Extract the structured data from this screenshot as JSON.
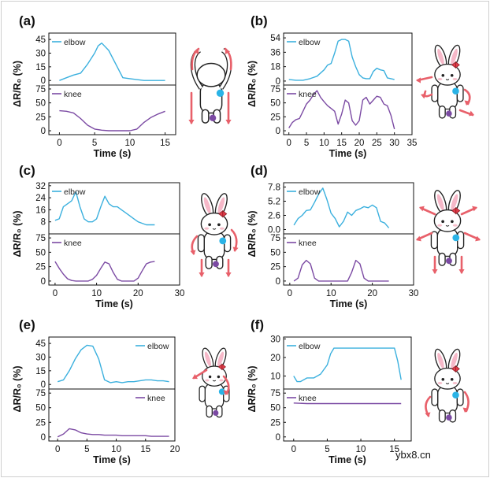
{
  "watermark": "ybx8.cn",
  "colors": {
    "elbow": "#3bb0de",
    "knee": "#7b4aa3",
    "arrow": "#e8606a",
    "blue_dot": "#2ab3e6",
    "purple_dot": "#7b4aa3"
  },
  "chart_data": [
    {
      "panel": "(a)",
      "type": "line",
      "xlabel": "Time (s)",
      "ylabel": "ΔR/R₀ (%)",
      "xlim": [
        -1.5,
        16.5
      ],
      "xticks": [
        0,
        5,
        10,
        15
      ],
      "top": {
        "name": "elbow",
        "legend": "elbow",
        "ylim": [
          -5,
          52
        ],
        "yticks": [
          0,
          15,
          30,
          45
        ],
        "x": [
          0,
          1,
          2,
          3,
          4,
          5,
          5.5,
          6,
          7,
          8,
          9,
          10,
          11,
          12,
          13,
          14,
          15
        ],
        "y": [
          0,
          3,
          6,
          8,
          18,
          30,
          38,
          41,
          33,
          18,
          3,
          2,
          1,
          0,
          0,
          0,
          0
        ]
      },
      "bottom": {
        "name": "knee",
        "legend": "knee",
        "ylim": [
          -7,
          82
        ],
        "yticks": [
          0,
          25,
          50,
          75
        ],
        "x": [
          0,
          1,
          2,
          3,
          4,
          5,
          6,
          7,
          8,
          9,
          10,
          11,
          12,
          13,
          14,
          15
        ],
        "y": [
          36,
          35,
          32,
          22,
          10,
          3,
          1,
          0,
          0,
          0,
          0,
          3,
          15,
          24,
          30,
          35
        ]
      }
    },
    {
      "panel": "(b)",
      "type": "line",
      "xlabel": "Time (s)",
      "ylabel": "ΔR/R₀ (%)",
      "xlim": [
        -1.5,
        35
      ],
      "xticks": [
        0,
        5,
        10,
        15,
        20,
        25,
        30,
        35
      ],
      "top": {
        "name": "elbow",
        "legend": "elbow",
        "ylim": [
          -5,
          60
        ],
        "yticks": [
          0,
          18,
          36,
          54
        ],
        "x": [
          0,
          2,
          4,
          6,
          8,
          10,
          11,
          12,
          13,
          14,
          15,
          16,
          17,
          18,
          19,
          20,
          21,
          22,
          23,
          24,
          25,
          26,
          27,
          28,
          29,
          30
        ],
        "y": [
          2,
          1,
          1,
          3,
          6,
          14,
          20,
          22,
          35,
          50,
          52,
          52,
          50,
          30,
          18,
          8,
          4,
          3,
          3,
          12,
          16,
          14,
          13,
          4,
          3,
          2
        ]
      },
      "bottom": {
        "name": "knee",
        "legend": "knee",
        "ylim": [
          -7,
          82
        ],
        "yticks": [
          0,
          25,
          50,
          75
        ],
        "x": [
          0,
          1,
          2,
          3,
          4,
          5,
          6,
          7,
          8,
          9,
          10,
          11,
          12,
          13,
          14,
          15,
          16,
          17,
          18,
          19,
          20,
          21,
          22,
          23,
          24,
          25,
          26,
          27,
          28,
          29,
          30
        ],
        "y": [
          5,
          15,
          20,
          22,
          35,
          48,
          55,
          65,
          72,
          60,
          52,
          45,
          40,
          35,
          12,
          30,
          55,
          50,
          18,
          10,
          18,
          55,
          60,
          48,
          55,
          62,
          60,
          48,
          45,
          28,
          3
        ]
      }
    },
    {
      "panel": "(c)",
      "type": "line",
      "xlabel": "Time (s)",
      "ylabel": "ΔR/R₀ (%)",
      "xlim": [
        -1.5,
        30
      ],
      "xticks": [
        0,
        10,
        20,
        30
      ],
      "top": {
        "name": "elbow",
        "legend": "elbow",
        "ylim": [
          0,
          34
        ],
        "yticks": [
          8,
          16,
          24,
          32
        ],
        "x": [
          0,
          1,
          2,
          3,
          4,
          5,
          6,
          7,
          8,
          9,
          10,
          11,
          12,
          13,
          14,
          15,
          16,
          17,
          18,
          19,
          20,
          21,
          22,
          23,
          24
        ],
        "y": [
          9,
          10,
          18,
          20,
          22,
          28,
          18,
          10,
          8,
          8,
          10,
          18,
          25,
          20,
          18,
          18,
          16,
          14,
          12,
          10,
          8,
          7,
          6,
          6,
          6
        ]
      },
      "bottom": {
        "name": "knee",
        "legend": "knee",
        "ylim": [
          -7,
          82
        ],
        "yticks": [
          0,
          25,
          50,
          75
        ],
        "x": [
          0,
          1,
          2,
          3,
          4,
          5,
          6,
          7,
          8,
          9,
          10,
          11,
          12,
          13,
          14,
          15,
          16,
          17,
          18,
          19,
          20,
          21,
          22,
          23,
          24
        ],
        "y": [
          34,
          22,
          12,
          4,
          1,
          0,
          0,
          0,
          0,
          3,
          10,
          22,
          33,
          30,
          15,
          3,
          0,
          0,
          0,
          0,
          5,
          18,
          30,
          33,
          34
        ]
      }
    },
    {
      "panel": "(d)",
      "type": "line",
      "xlabel": "Time (s)",
      "ylabel": "ΔR/R₀ (%)",
      "xlim": [
        -1.5,
        30
      ],
      "xticks": [
        0,
        10,
        20,
        30
      ],
      "top": {
        "name": "elbow",
        "legend": "elbow",
        "ylim": [
          -0.8,
          8.6
        ],
        "yticks": [
          0.0,
          2.6,
          5.2,
          7.8
        ],
        "x": [
          1,
          2,
          3,
          4,
          5,
          6,
          7,
          8,
          9,
          10,
          11,
          12,
          13,
          14,
          15,
          16,
          17,
          18,
          19,
          20,
          21,
          22,
          23,
          24
        ],
        "y": [
          0.8,
          2.0,
          2.6,
          3.5,
          3.6,
          5.0,
          6.5,
          7.6,
          5.5,
          3.0,
          2.0,
          0.5,
          1.5,
          3.2,
          2.6,
          3.5,
          3.8,
          4.2,
          4.0,
          4.5,
          4.0,
          1.5,
          1.2,
          0.3
        ]
      },
      "bottom": {
        "name": "knee",
        "legend": "knee",
        "ylim": [
          -7,
          82
        ],
        "yticks": [
          0,
          25,
          50,
          75
        ],
        "x": [
          1,
          2,
          3,
          4,
          5,
          6,
          7,
          8,
          9,
          10,
          11,
          12,
          13,
          14,
          15,
          16,
          17,
          18,
          19,
          20,
          21,
          22,
          23,
          24
        ],
        "y": [
          0,
          5,
          28,
          36,
          30,
          5,
          0,
          0,
          0,
          0,
          0,
          0,
          0,
          0,
          15,
          36,
          30,
          5,
          0,
          0,
          0,
          0,
          0,
          0
        ]
      }
    },
    {
      "panel": "(e)",
      "type": "line",
      "xlabel": "Time (s)",
      "ylabel": "ΔR/R₀ (%)",
      "xlim": [
        -1.5,
        20
      ],
      "xticks": [
        0,
        5,
        10,
        15,
        20
      ],
      "top": {
        "name": "elbow",
        "legend": "elbow",
        "ylim": [
          -5,
          52
        ],
        "yticks": [
          0,
          15,
          30,
          45
        ],
        "x": [
          0,
          1,
          2,
          3,
          4,
          5,
          6,
          7,
          8,
          9,
          10,
          11,
          12,
          13,
          14,
          15,
          16,
          17,
          18,
          19
        ],
        "y": [
          3,
          5,
          15,
          28,
          38,
          43,
          42,
          28,
          5,
          2,
          3,
          2,
          3,
          3,
          4,
          5,
          5,
          4,
          4,
          3
        ]
      },
      "bottom": {
        "name": "knee",
        "legend": "knee",
        "ylim": [
          -7,
          82
        ],
        "yticks": [
          0,
          25,
          50,
          75
        ],
        "x": [
          0,
          1,
          2,
          3,
          4,
          5,
          6,
          7,
          8,
          9,
          10,
          11,
          12,
          13,
          14,
          15,
          16,
          17,
          18,
          19
        ],
        "y": [
          0,
          5,
          14,
          12,
          7,
          5,
          4,
          4,
          3,
          3,
          3,
          2,
          2,
          2,
          2,
          2,
          1,
          1,
          1,
          1
        ]
      }
    },
    {
      "panel": "(f)",
      "type": "line",
      "xlabel": "Time (s)",
      "ylabel": "ΔR/R₀ (%)",
      "xlim": [
        -1.5,
        17.5
      ],
      "xticks": [
        0,
        5,
        10,
        15
      ],
      "top": {
        "name": "elbow",
        "legend": "elbow",
        "ylim": [
          3,
          31
        ],
        "yticks": [
          10,
          20,
          30
        ],
        "x": [
          0,
          0.5,
          1,
          2,
          3,
          4,
          5,
          5.5,
          6,
          7,
          8,
          9,
          10,
          11,
          12,
          13,
          14,
          15,
          15.5,
          16
        ],
        "y": [
          10,
          7,
          7,
          9,
          9,
          11,
          16,
          22,
          25,
          25,
          25,
          25,
          25,
          25,
          25,
          25,
          25,
          25,
          18,
          8
        ]
      },
      "bottom": {
        "name": "knee",
        "legend": "knee",
        "ylim": [
          -7,
          82
        ],
        "yticks": [
          0,
          25,
          50,
          75
        ],
        "x": [
          0,
          2,
          4,
          6,
          8,
          10,
          12,
          14,
          16
        ],
        "y": [
          58,
          57,
          57,
          57,
          57,
          57,
          57,
          57,
          57
        ]
      }
    }
  ]
}
